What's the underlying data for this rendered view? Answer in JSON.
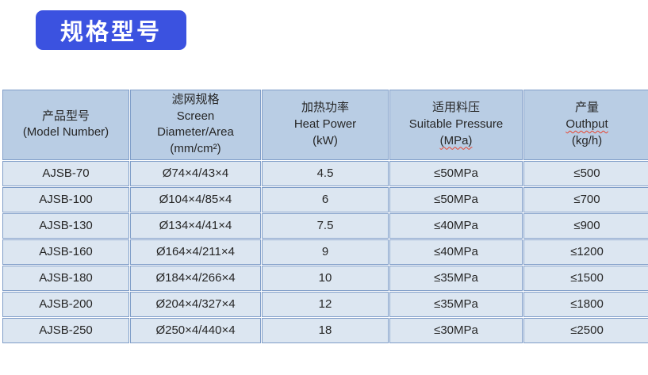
{
  "title_badge": {
    "label": "规格型号"
  },
  "colors": {
    "badge_bg": "#3B52E0",
    "badge_text": "#FFFFFF",
    "header_bg": "#B9CDE4",
    "row_bg": "#DCE6F1",
    "border": "#7F9DC8",
    "text": "#262626",
    "spellcheck_underline": "#E8432D",
    "page_bg": "#FFFFFF"
  },
  "table": {
    "columns": [
      {
        "id": "model",
        "lines": [
          "产品型号",
          "(Model Number)"
        ],
        "spellcheck_line": -1
      },
      {
        "id": "screen",
        "lines": [
          "滤网规格",
          "Screen",
          "Diameter/Area",
          "(mm/cm²)"
        ],
        "spellcheck_line": -1
      },
      {
        "id": "heat-power",
        "lines": [
          "加热功率",
          "Heat Power",
          "(kW)"
        ],
        "spellcheck_line": -1
      },
      {
        "id": "pressure",
        "lines": [
          "适用料压",
          "Suitable Pressure",
          "(MPa)"
        ],
        "spellcheck_line": 2
      },
      {
        "id": "output",
        "lines": [
          "产量",
          "Outhput",
          "(kg/h)"
        ],
        "spellcheck_line": 1
      }
    ],
    "rows": [
      [
        "AJSB-70",
        "Ø74×4/43×4",
        "4.5",
        "≤50MPa",
        "≤500"
      ],
      [
        "AJSB-100",
        "Ø104×4/85×4",
        "6",
        "≤50MPa",
        "≤700"
      ],
      [
        "AJSB-130",
        "Ø134×4/41×4",
        "7.5",
        "≤40MPa",
        "≤900"
      ],
      [
        "AJSB-160",
        "Ø164×4/211×4",
        "9",
        "≤40MPa",
        "≤1200"
      ],
      [
        "AJSB-180",
        "Ø184×4/266×4",
        "10",
        "≤35MPa",
        "≤1500"
      ],
      [
        "AJSB-200",
        "Ø204×4/327×4",
        "12",
        "≤35MPa",
        "≤1800"
      ],
      [
        "AJSB-250",
        "Ø250×4/440×4",
        "18",
        "≤30MPa",
        "≤2500"
      ]
    ]
  }
}
